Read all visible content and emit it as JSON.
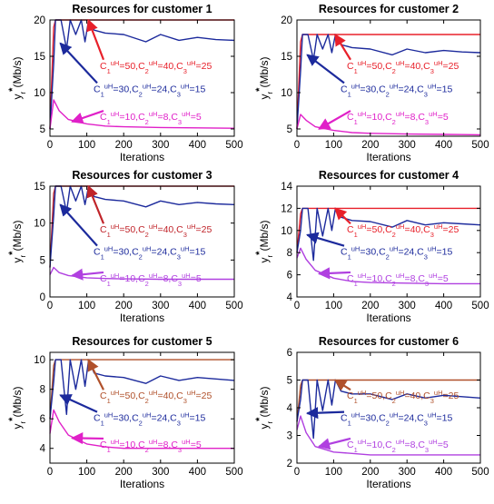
{
  "chart_data": [
    {
      "type": "line",
      "title": "Resources for customer 1",
      "xlabel": "Iterations",
      "ylabel": "y_r^*(Mb/s)",
      "xlim": [
        0,
        500
      ],
      "ylim": [
        4,
        20
      ],
      "xticks": [
        0,
        100,
        200,
        300,
        400,
        500
      ],
      "yticks": [
        5,
        10,
        15,
        20
      ],
      "grid": false,
      "series": [
        {
          "color": "#e8202a",
          "x": [
            0,
            10,
            15,
            500
          ],
          "y": [
            5,
            19,
            20,
            20
          ]
        },
        {
          "color": "#1c2a9c",
          "x": [
            0,
            10,
            15,
            30,
            45,
            55,
            70,
            85,
            95,
            105,
            120,
            150,
            200,
            260,
            300,
            350,
            400,
            450,
            500
          ],
          "y": [
            5,
            14,
            20,
            20,
            16,
            20,
            18,
            20,
            17,
            20,
            18.6,
            18.2,
            18,
            17,
            18,
            17.2,
            17.6,
            17.3,
            17.2
          ]
        },
        {
          "color": "#e020c8",
          "x": [
            0,
            10,
            25,
            50,
            100,
            150,
            200,
            300,
            400,
            500
          ],
          "y": [
            5,
            9,
            7.5,
            6.3,
            5.7,
            5.4,
            5.3,
            5.2,
            5.15,
            5.1
          ]
        }
      ],
      "annotations": [
        {
          "color": "#e8202a",
          "c1": "50",
          "c2": "40",
          "c3": "25",
          "arrow_to": [
            104,
            20
          ]
        },
        {
          "color": "#1c2a9c",
          "c1": "30",
          "c2": "24",
          "c3": "15",
          "arrow_to": [
            28,
            16.8
          ]
        },
        {
          "color": "#e020c8",
          "c1": "10",
          "c2": "8",
          "c3": "5",
          "arrow_to": [
            60,
            6.0
          ]
        }
      ]
    },
    {
      "type": "line",
      "title": "Resources for customer 2",
      "xlabel": "Iterations",
      "ylabel": "y_r^*(Mb/s)",
      "xlim": [
        0,
        500
      ],
      "ylim": [
        4,
        20
      ],
      "xticks": [
        0,
        100,
        200,
        300,
        400,
        500
      ],
      "yticks": [
        5,
        10,
        15,
        20
      ],
      "grid": false,
      "series": [
        {
          "color": "#e8202a",
          "x": [
            0,
            10,
            15,
            500
          ],
          "y": [
            5,
            17,
            18,
            18
          ]
        },
        {
          "color": "#1c2a9c",
          "x": [
            0,
            10,
            15,
            30,
            45,
            55,
            70,
            85,
            95,
            105,
            120,
            150,
            200,
            260,
            300,
            350,
            400,
            450,
            500
          ],
          "y": [
            5,
            13,
            18,
            18,
            14.5,
            18,
            16,
            18,
            15.5,
            18,
            16.6,
            16.2,
            16,
            15.2,
            16,
            15.5,
            15.8,
            15.6,
            15.5
          ]
        },
        {
          "color": "#e020c8",
          "x": [
            0,
            10,
            25,
            50,
            100,
            150,
            200,
            300,
            400,
            500
          ],
          "y": [
            5,
            7,
            6.2,
            5.3,
            4.8,
            4.5,
            4.4,
            4.3,
            4.25,
            4.2
          ]
        }
      ],
      "annotations": [
        {
          "color": "#e8202a",
          "c1": "50",
          "c2": "40",
          "c3": "25",
          "arrow_to": [
            104,
            18
          ]
        },
        {
          "color": "#1c2a9c",
          "c1": "30",
          "c2": "24",
          "c3": "15",
          "arrow_to": [
            28,
            15.2
          ]
        },
        {
          "color": "#e020c8",
          "c1": "10",
          "c2": "8",
          "c3": "5",
          "arrow_to": [
            60,
            5.0
          ]
        }
      ]
    },
    {
      "type": "line",
      "title": "Resources for customer 3",
      "xlabel": "Iterations",
      "ylabel": "y_r^*(Mb/s)",
      "xlim": [
        0,
        500
      ],
      "ylim": [
        0,
        15
      ],
      "xticks": [
        0,
        100,
        200,
        300,
        400,
        500
      ],
      "yticks": [
        0,
        5,
        10,
        15
      ],
      "grid": false,
      "series": [
        {
          "color": "#c0242a",
          "x": [
            0,
            10,
            15,
            500
          ],
          "y": [
            4,
            14,
            15,
            15
          ]
        },
        {
          "color": "#1c2a9c",
          "x": [
            0,
            10,
            15,
            30,
            45,
            55,
            70,
            85,
            95,
            105,
            120,
            150,
            200,
            260,
            300,
            350,
            400,
            450,
            500
          ],
          "y": [
            4,
            11,
            15,
            15,
            11.5,
            15,
            13,
            15,
            12.5,
            15,
            13.6,
            13.2,
            13,
            12.2,
            13,
            12.5,
            12.8,
            12.6,
            12.5
          ]
        },
        {
          "color": "#b040e0",
          "x": [
            0,
            10,
            25,
            50,
            100,
            150,
            200,
            300,
            400,
            500
          ],
          "y": [
            3,
            4,
            3.3,
            2.9,
            2.6,
            2.5,
            2.45,
            2.4,
            2.4,
            2.4
          ]
        }
      ],
      "annotations": [
        {
          "color": "#c0242a",
          "c1": "50",
          "c2": "40",
          "c3": "25",
          "arrow_to": [
            104,
            15
          ]
        },
        {
          "color": "#1c2a9c",
          "c1": "30",
          "c2": "24",
          "c3": "15",
          "arrow_to": [
            28,
            12.5
          ]
        },
        {
          "color": "#b040e0",
          "c1": "10",
          "c2": "8",
          "c3": "5",
          "arrow_to": [
            60,
            2.9
          ]
        }
      ]
    },
    {
      "type": "line",
      "title": "Resources for customer 4",
      "xlabel": "Iterations",
      "ylabel": "y_r^*(Mb/s)",
      "xlim": [
        0,
        500
      ],
      "ylim": [
        4,
        14
      ],
      "xticks": [
        0,
        100,
        200,
        300,
        400,
        500
      ],
      "yticks": [
        4,
        6,
        8,
        10,
        12,
        14
      ],
      "grid": false,
      "series": [
        {
          "color": "#e8202a",
          "x": [
            0,
            10,
            15,
            500
          ],
          "y": [
            8,
            11.5,
            12,
            12
          ]
        },
        {
          "color": "#1c2a9c",
          "x": [
            0,
            10,
            15,
            30,
            45,
            55,
            70,
            85,
            95,
            105,
            120,
            150,
            200,
            260,
            300,
            350,
            400,
            450,
            500
          ],
          "y": [
            8,
            10,
            12,
            12,
            7.3,
            12,
            9.5,
            12,
            10,
            12,
            11.2,
            10.9,
            10.8,
            10.3,
            10.9,
            10.5,
            10.7,
            10.6,
            10.5
          ]
        },
        {
          "color": "#b040e0",
          "x": [
            0,
            10,
            25,
            50,
            100,
            150,
            200,
            300,
            400,
            500
          ],
          "y": [
            7.5,
            8.4,
            7.4,
            6.4,
            5.7,
            5.4,
            5.3,
            5.25,
            5.2,
            5.2
          ]
        }
      ],
      "annotations": [
        {
          "color": "#e8202a",
          "c1": "50",
          "c2": "40",
          "c3": "25",
          "arrow_to": [
            104,
            12
          ]
        },
        {
          "color": "#1c2a9c",
          "c1": "30",
          "c2": "24",
          "c3": "15",
          "arrow_to": [
            28,
            9.6
          ]
        },
        {
          "color": "#b040e0",
          "c1": "10",
          "c2": "8",
          "c3": "5",
          "arrow_to": [
            60,
            6.1
          ]
        }
      ]
    },
    {
      "type": "line",
      "title": "Resources for customer 5",
      "xlabel": "Iterations",
      "ylabel": "y_r^*(Mb/s)",
      "xlim": [
        0,
        500
      ],
      "ylim": [
        3,
        10.5
      ],
      "xticks": [
        0,
        100,
        200,
        300,
        400,
        500
      ],
      "yticks": [
        4,
        6,
        8,
        10
      ],
      "grid": false,
      "series": [
        {
          "color": "#b0502a",
          "x": [
            0,
            10,
            15,
            500
          ],
          "y": [
            6,
            9.6,
            10,
            10
          ]
        },
        {
          "color": "#1c2a9c",
          "x": [
            0,
            10,
            15,
            30,
            45,
            55,
            70,
            85,
            95,
            105,
            120,
            150,
            200,
            260,
            300,
            350,
            400,
            450,
            500
          ],
          "y": [
            6,
            8.5,
            10,
            10,
            6.3,
            10,
            8,
            10,
            8.2,
            10,
            9.1,
            8.9,
            8.8,
            8.4,
            8.9,
            8.6,
            8.8,
            8.7,
            8.6
          ]
        },
        {
          "color": "#e020c8",
          "x": [
            0,
            10,
            25,
            50,
            100,
            150,
            200,
            300,
            400,
            500
          ],
          "y": [
            5,
            6.6,
            5.8,
            4.9,
            4.3,
            4.1,
            4.0,
            4.0,
            4.0,
            4.0
          ]
        }
      ],
      "annotations": [
        {
          "color": "#b0502a",
          "c1": "50",
          "c2": "40",
          "c3": "25",
          "arrow_to": [
            104,
            10
          ]
        },
        {
          "color": "#1c2a9c",
          "c1": "30",
          "c2": "24",
          "c3": "15",
          "arrow_to": [
            28,
            7.6
          ]
        },
        {
          "color": "#e020c8",
          "c1": "10",
          "c2": "8",
          "c3": "5",
          "arrow_to": [
            60,
            4.7
          ]
        }
      ]
    },
    {
      "type": "line",
      "title": "Resources for customer 6",
      "xlabel": "Iterations",
      "ylabel": "y_r^*(Mb/s)",
      "xlim": [
        0,
        500
      ],
      "ylim": [
        2,
        6
      ],
      "xticks": [
        0,
        100,
        200,
        300,
        400,
        500
      ],
      "yticks": [
        2,
        3,
        4,
        5,
        6
      ],
      "grid": false,
      "series": [
        {
          "color": "#b0502a",
          "x": [
            0,
            10,
            15,
            500
          ],
          "y": [
            3.5,
            4.8,
            5,
            5
          ]
        },
        {
          "color": "#1c2a9c",
          "x": [
            0,
            10,
            15,
            30,
            45,
            55,
            70,
            85,
            95,
            105,
            120,
            150,
            200,
            260,
            300,
            350,
            400,
            450,
            500
          ],
          "y": [
            3.5,
            4.3,
            5,
            5,
            2.9,
            5,
            3.9,
            5,
            4.1,
            5,
            4.6,
            4.5,
            4.5,
            4.3,
            4.5,
            4.35,
            4.45,
            4.4,
            4.35
          ]
        },
        {
          "color": "#b040e0",
          "x": [
            0,
            10,
            25,
            50,
            100,
            150,
            200,
            300,
            400,
            500
          ],
          "y": [
            3.2,
            3.7,
            3.1,
            2.6,
            2.4,
            2.35,
            2.3,
            2.3,
            2.3,
            2.3
          ]
        }
      ],
      "annotations": [
        {
          "color": "#b0502a",
          "c1": "50",
          "c2": "40",
          "c3": "25",
          "arrow_to": [
            104,
            5
          ]
        },
        {
          "color": "#1c2a9c",
          "c1": "30",
          "c2": "24",
          "c3": "15",
          "arrow_to": [
            28,
            3.8
          ]
        },
        {
          "color": "#b040e0",
          "c1": "10",
          "c2": "8",
          "c3": "5",
          "arrow_to": [
            60,
            2.6
          ]
        }
      ]
    }
  ]
}
